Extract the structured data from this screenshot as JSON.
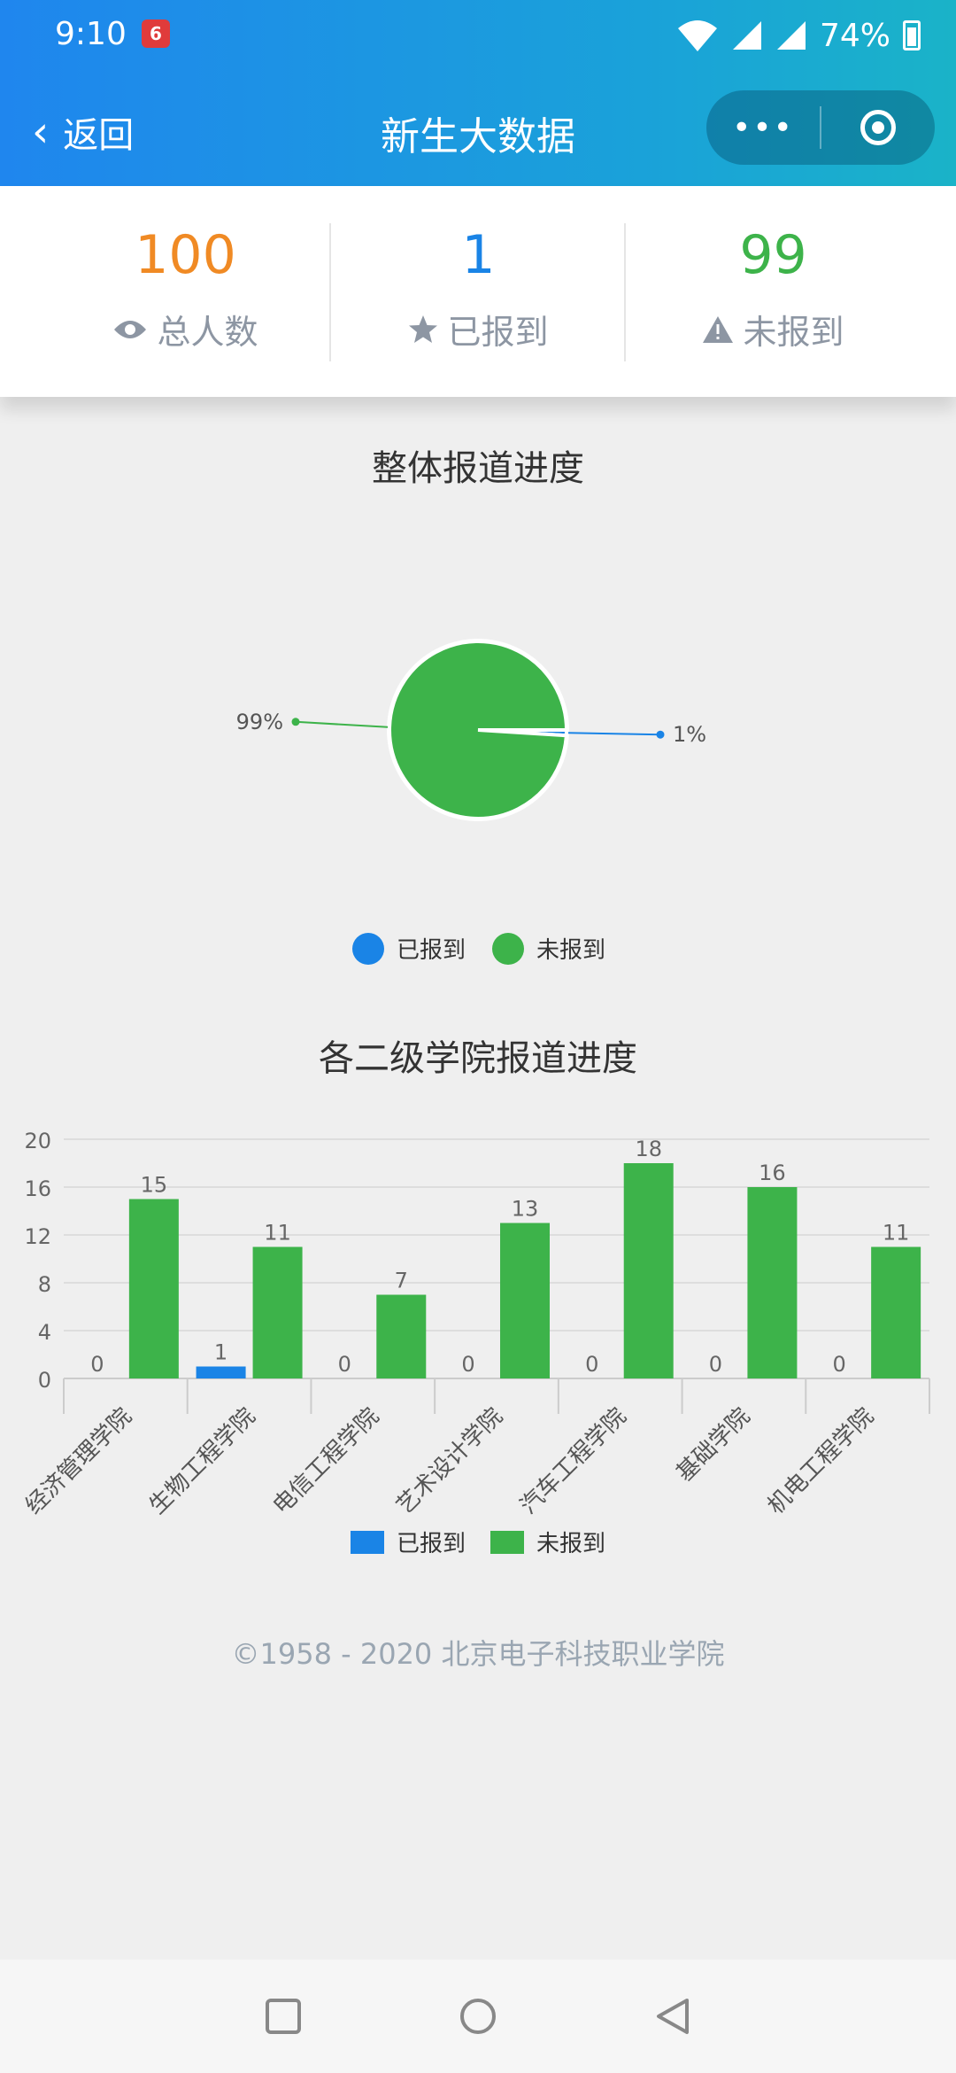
{
  "status_bar": {
    "time": "9:10",
    "app_badge": "6",
    "battery": "74%"
  },
  "nav": {
    "back_label": "返回",
    "title": "新生大数据",
    "more": "•••"
  },
  "stats": [
    {
      "value": "100",
      "label": "总人数",
      "icon": "eye-icon",
      "color": "#f08a24"
    },
    {
      "value": "1",
      "label": "已报到",
      "icon": "star-icon",
      "color": "#1a84e6"
    },
    {
      "value": "99",
      "label": "未报到",
      "icon": "warning-icon",
      "color": "#3db34a"
    }
  ],
  "pie_title": "整体报道进度",
  "bar_title": "各二级学院报道进度",
  "footer": "©1958 - 2020 北京电子科技职业学院",
  "chart_data": [
    {
      "type": "pie",
      "title": "整体报道进度",
      "series": [
        {
          "name": "已报到",
          "value": 1,
          "label": "1%",
          "color": "#1a84e6"
        },
        {
          "name": "未报到",
          "value": 99,
          "label": "99%",
          "color": "#3db34a"
        }
      ],
      "legend": [
        "已报到",
        "未报到"
      ],
      "legend_position": "bottom"
    },
    {
      "type": "bar",
      "title": "各二级学院报道进度",
      "categories": [
        "经济管理学院",
        "生物工程学院",
        "电信工程学院",
        "艺术设计学院",
        "汽车工程学院",
        "基础学院",
        "机电工程学院"
      ],
      "series": [
        {
          "name": "已报到",
          "values": [
            0,
            1,
            0,
            0,
            0,
            0,
            0
          ],
          "color": "#1a84e6"
        },
        {
          "name": "未报到",
          "values": [
            15,
            11,
            7,
            13,
            18,
            16,
            11
          ],
          "color": "#3db34a"
        }
      ],
      "ylim": [
        0,
        20
      ],
      "yticks": [
        "0",
        "4",
        "8",
        "12",
        "16",
        "20"
      ],
      "grid": true,
      "legend_position": "bottom"
    }
  ]
}
